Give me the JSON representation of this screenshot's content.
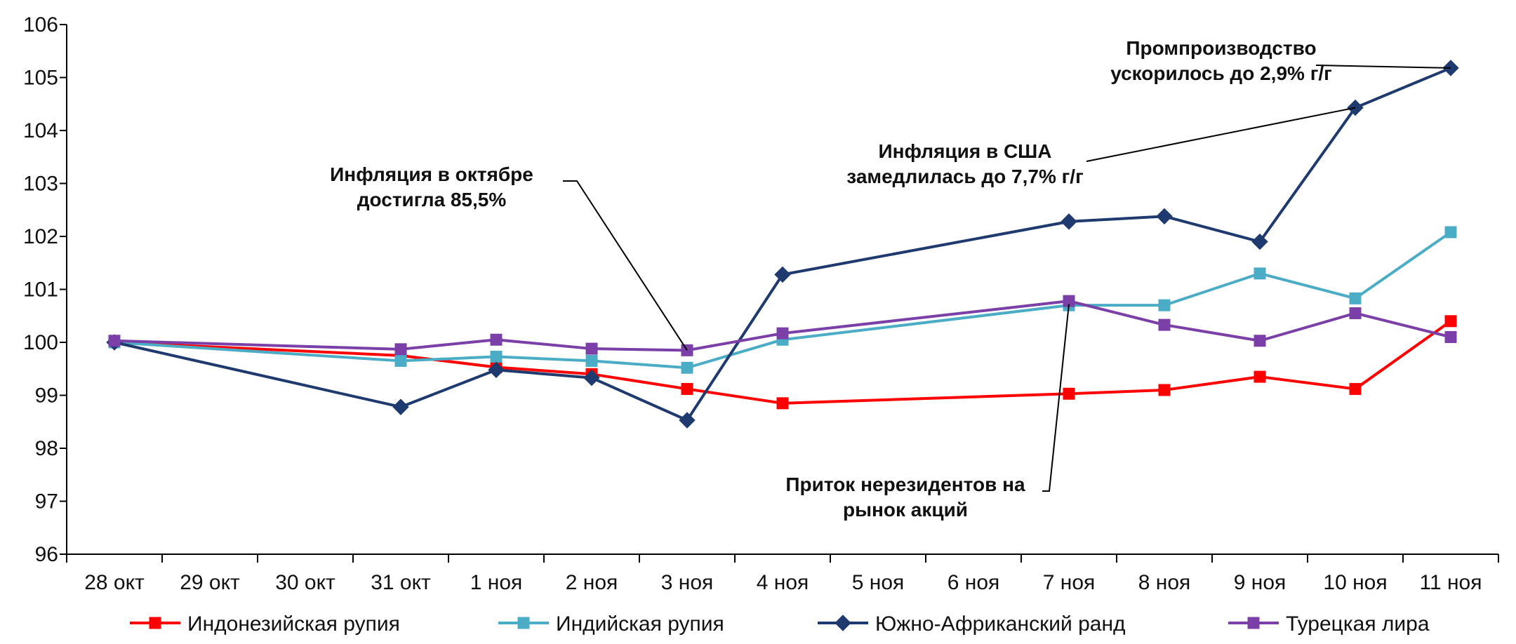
{
  "chart_data": {
    "type": "line",
    "title": "",
    "xlabel": "",
    "ylabel": "",
    "ylim": [
      96,
      106
    ],
    "yticks": [
      96,
      97,
      98,
      99,
      100,
      101,
      102,
      103,
      104,
      105,
      106
    ],
    "grid": false,
    "legend_position": "bottom",
    "categories": [
      "28 окт",
      "29 окт",
      "30 окт",
      "31 окт",
      "1 ноя",
      "2 ноя",
      "3 ноя",
      "4 ноя",
      "5 ноя",
      "6 ноя",
      "7 ноя",
      "8 ноя",
      "9 ноя",
      "10 ноя",
      "11 ноя"
    ],
    "series": [
      {
        "name": "Индонезийская рупия",
        "color": "#ff0000",
        "marker": "square",
        "values": [
          100.0,
          null,
          null,
          99.75,
          99.53,
          99.4,
          99.12,
          98.85,
          null,
          null,
          99.03,
          99.1,
          99.35,
          99.12,
          100.4
        ]
      },
      {
        "name": "Индийская рупия",
        "color": "#4bacc6",
        "marker": "square",
        "values": [
          100.0,
          null,
          null,
          99.65,
          99.73,
          99.65,
          99.52,
          100.05,
          null,
          null,
          100.7,
          100.7,
          101.3,
          100.83,
          102.08
        ]
      },
      {
        "name": "Южно-Африканский ранд",
        "color": "#1f3a6e",
        "marker": "diamond",
        "values": [
          100.0,
          null,
          null,
          98.78,
          99.48,
          99.33,
          98.53,
          101.28,
          null,
          null,
          102.28,
          102.38,
          101.9,
          104.43,
          105.18
        ]
      },
      {
        "name": "Турецкая лира",
        "color": "#7b3fa8",
        "marker": "square",
        "values": [
          100.03,
          null,
          null,
          99.87,
          100.05,
          99.88,
          99.85,
          100.17,
          null,
          null,
          100.78,
          100.33,
          100.03,
          100.55,
          100.1
        ]
      }
    ],
    "annotations": [
      {
        "lines": [
          "Инфляция в октябре",
          "достигла 85,5%"
        ],
        "target_category": "3 ноя",
        "target_value": 99.85
      },
      {
        "lines": [
          "Инфляция в США",
          "замедлилась до 7,7% г/г"
        ],
        "target_category": "10 ноя",
        "target_value": 104.43
      },
      {
        "lines": [
          "Промпроизводство",
          "ускорилось до 2,9% г/г"
        ],
        "target_category": "11 ноя",
        "target_value": 105.18
      },
      {
        "lines": [
          "Приток нерезидентов на",
          "рынок акций"
        ],
        "target_category": "7 ноя",
        "target_value": 100.72
      }
    ]
  }
}
